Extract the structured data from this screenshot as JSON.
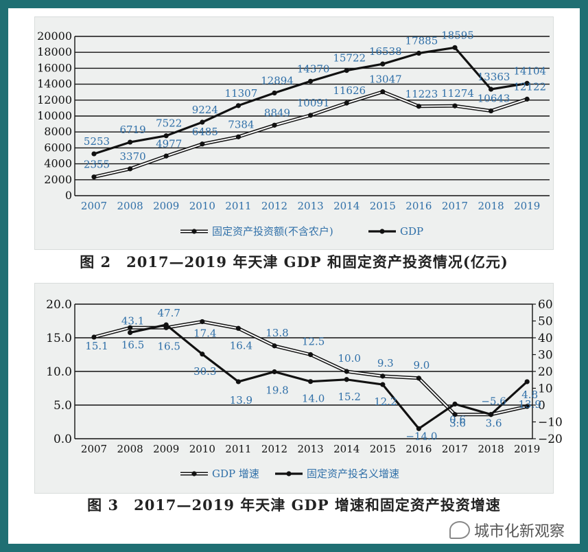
{
  "captions": {
    "figure2": "图 2　2017—2019 年天津 GDP 和固定资产投资情况(亿元)",
    "figure3": "图 3　2017—2019 年天津 GDP 增速和固定资产投资增速"
  },
  "watermark": {
    "text": "城市化新观察",
    "icon": "wechat-icon"
  },
  "colors": {
    "frame": "#1f6f73",
    "panel_bg": "#eef0ef",
    "label_blue": "#2f6fa8",
    "line": "#111111"
  },
  "chart_data": [
    {
      "type": "line",
      "title": "",
      "xlabel": "",
      "ylabel": "",
      "categories": [
        "2007",
        "2008",
        "2009",
        "2010",
        "2011",
        "2012",
        "2013",
        "2014",
        "2015",
        "2016",
        "2017",
        "2018",
        "2019"
      ],
      "ylim": [
        0,
        20000
      ],
      "yticks": [
        "0",
        "2000",
        "4000",
        "6000",
        "8000",
        "10000",
        "12000",
        "14000",
        "16000",
        "18000",
        "20000"
      ],
      "grid": true,
      "legend_position": "bottom",
      "series": [
        {
          "name": "固定资产投资额(不含农户)",
          "style": "double",
          "values": [
            2355,
            3370,
            4977,
            6485,
            7384,
            8849,
            10091,
            11626,
            13047,
            11223,
            11274,
            10643,
            12122
          ],
          "labels": [
            "2355",
            "3370",
            "4977",
            "6485",
            "7384",
            "8849",
            "10091",
            "11626",
            "13047",
            "11223",
            "11274",
            "10643",
            "12122"
          ]
        },
        {
          "name": "GDP",
          "style": "bold",
          "values": [
            5253,
            6719,
            7522,
            9224,
            11307,
            12894,
            14370,
            15722,
            16538,
            17885,
            18595,
            13363,
            14104
          ],
          "labels": [
            "5253",
            "6719",
            "7522",
            "9224",
            "11307",
            "12894",
            "14370",
            "15722",
            "16538",
            "17885",
            "18595",
            "13363",
            "14104"
          ]
        }
      ]
    },
    {
      "type": "line",
      "title": "",
      "xlabel": "",
      "ylabel": "",
      "categories": [
        "2007",
        "2008",
        "2009",
        "2010",
        "2011",
        "2012",
        "2013",
        "2014",
        "2015",
        "2016",
        "2017",
        "2018",
        "2019"
      ],
      "ylim_left": [
        0,
        20
      ],
      "ylim_right": [
        -20,
        60
      ],
      "yticks_left": [
        "0.0",
        "5.0",
        "10.0",
        "15.0",
        "20.0"
      ],
      "yticks_right": [
        "−20",
        "−10",
        "0",
        "10",
        "20",
        "30",
        "40",
        "50",
        "60"
      ],
      "grid": false,
      "legend_position": "bottom",
      "series": [
        {
          "name": "GDP 增速",
          "style": "double",
          "axis": "left",
          "values": [
            15.1,
            16.5,
            16.5,
            17.4,
            16.4,
            13.8,
            12.5,
            10.0,
            9.3,
            9.0,
            3.6,
            3.6,
            4.8
          ],
          "labels": [
            "15.1",
            "16.5",
            "16.5",
            "17.4",
            "16.4",
            "13.8",
            "12.5",
            "10.0",
            "9.3",
            "9.0",
            "3.6",
            "3.6",
            "4.8"
          ]
        },
        {
          "name": "固定资产投名义增速",
          "style": "bold",
          "axis": "right",
          "values": [
            null,
            43.1,
            47.7,
            30.3,
            13.9,
            19.8,
            14.0,
            15.2,
            12.2,
            -14.0,
            0.6,
            -5.6,
            13.9
          ],
          "labels": [
            "",
            "43.1",
            "47.7",
            "30.3",
            "13.9",
            "19.8",
            "14.0",
            "15.2",
            "12.2",
            "−14.0",
            "0.6",
            "−5.6",
            "13.9"
          ]
        }
      ]
    }
  ]
}
